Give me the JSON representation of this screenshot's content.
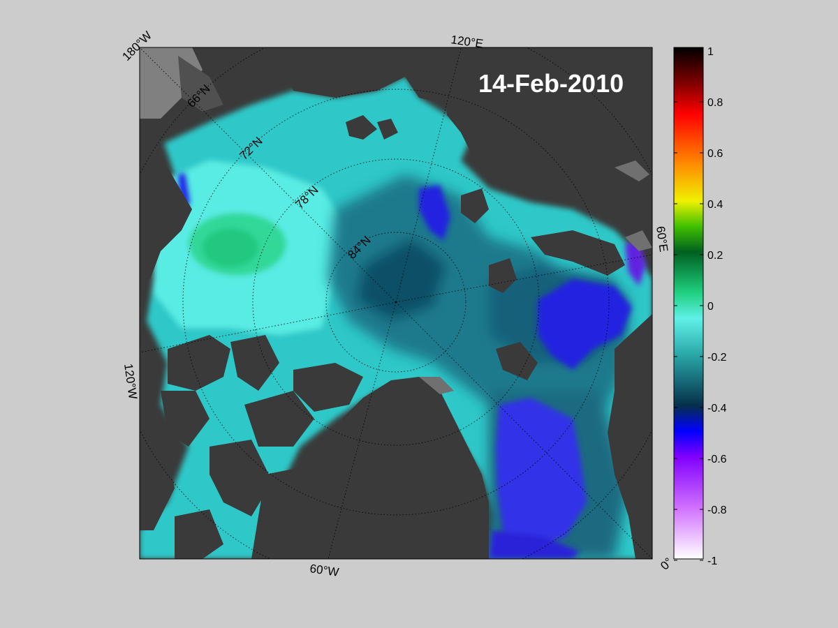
{
  "map": {
    "date_label": "14-Feb-2010",
    "meridian_labels": {
      "lon_180w": "180°W",
      "lon_120e": "120°E",
      "lon_60e": "60°E",
      "lon_0": "0°",
      "lon_60w": "60°W",
      "lon_120w": "120°W"
    },
    "parallel_labels": {
      "lat_66n": "66°N",
      "lat_72n": "72°N",
      "lat_78n": "78°N",
      "lat_84n": "84°N"
    },
    "colors": {
      "land": "#3a3a3a",
      "background": "#cccccc",
      "grey_area": "#808080",
      "ocean_main": "#2fc8c8"
    }
  },
  "colorbar": {
    "ticks": [
      "1",
      "0.8",
      "0.6",
      "0.4",
      "0.2",
      "0",
      "-0.2",
      "-0.4",
      "-0.6",
      "-0.8",
      "-1"
    ],
    "range": [
      -1,
      1
    ],
    "colors": [
      "#ffffff",
      "#d070ff",
      "#8000ff",
      "#0000ff",
      "#05304a",
      "#2aa8a8",
      "#60f0e8",
      "#20d080",
      "#006020",
      "#40c000",
      "#f0f000",
      "#ff8000",
      "#ff0000",
      "#800000",
      "#000000"
    ]
  }
}
